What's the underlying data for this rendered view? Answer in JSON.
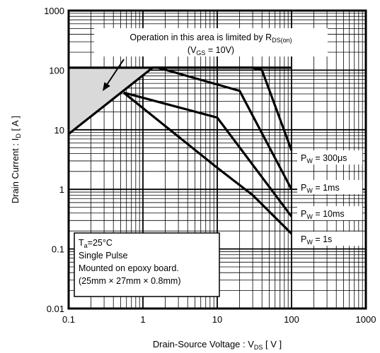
{
  "chart_data": {
    "type": "line",
    "x_scale": "log",
    "y_scale": "log",
    "xlim": [
      0.1,
      1000
    ],
    "ylim": [
      0.01,
      1000
    ],
    "grid": true,
    "xlabel": {
      "main": "Drain-Source  Voltage : V",
      "sub": "DS",
      "unit": " [ V ]"
    },
    "ylabel": {
      "main": "Drain  Current : I",
      "sub": "D",
      "unit": "  [ A ]"
    },
    "x_ticks": [
      {
        "value": 0.1,
        "label": "0.1"
      },
      {
        "value": 1,
        "label": "1"
      },
      {
        "value": 10,
        "label": "10"
      },
      {
        "value": 100,
        "label": "100"
      },
      {
        "value": 1000,
        "label": "1000"
      }
    ],
    "y_ticks": [
      {
        "value": 0.01,
        "label": "0.01"
      },
      {
        "value": 0.1,
        "label": "0.1"
      },
      {
        "value": 1,
        "label": "1"
      },
      {
        "value": 10,
        "label": "10"
      },
      {
        "value": 100,
        "label": "100"
      },
      {
        "value": 1000,
        "label": "1000"
      }
    ],
    "rds_limit": {
      "points": [
        [
          0.1,
          8.5
        ],
        [
          1.35,
          110
        ]
      ],
      "note_line1": "Operation in this area is limited by R",
      "note_line1_sub": "DS(on)",
      "note_line2_pre": "(V",
      "note_line2_sub": "GS",
      "note_line2_post": " = 10V)"
    },
    "current_limit": {
      "value": 110,
      "x_range": [
        0.1,
        100
      ]
    },
    "series": [
      {
        "label": "P",
        "label_sub": "W",
        "label_post": " = 300μs",
        "points": [
          [
            1.35,
            110
          ],
          [
            30,
            110
          ],
          [
            40,
            100
          ],
          [
            100,
            4.5
          ]
        ]
      },
      {
        "label": "P",
        "label_sub": "W",
        "label_post": " = 1ms",
        "points": [
          [
            1.6,
            110
          ],
          [
            20,
            45
          ],
          [
            100,
            1
          ]
        ]
      },
      {
        "label": "P",
        "label_sub": "W",
        "label_post": " = 10ms",
        "points": [
          [
            0.55,
            42
          ],
          [
            10,
            16
          ],
          [
            100,
            0.35
          ]
        ]
      },
      {
        "label": "P",
        "label_sub": "W",
        "label_post": " = 1s",
        "points": [
          [
            0.55,
            42
          ],
          [
            10,
            2.3
          ],
          [
            30,
            0.8
          ],
          [
            100,
            0.18
          ]
        ]
      }
    ],
    "conditions": {
      "line1_pre": "T",
      "line1_sub": "a",
      "line1_post": "=25°C",
      "line2": "Single Pulse",
      "line3": "Mounted on epoxy board.",
      "line4": "(25mm × 27mm × 0.8mm)"
    },
    "colors": {
      "line": "#000000",
      "area": "#d9d9d9",
      "grid": "#000000"
    }
  }
}
